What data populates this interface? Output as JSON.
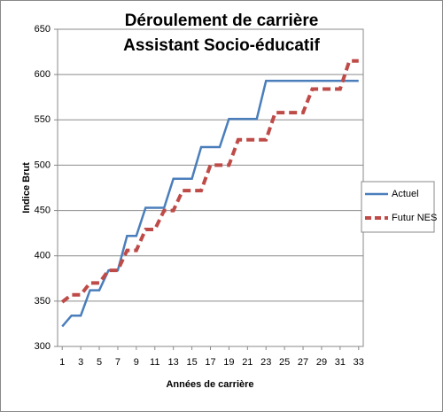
{
  "chart_data": {
    "type": "line",
    "title": "Déroulement de carrière",
    "subtitle": "Assistant Socio-éducatif",
    "x_label": "Années de carrière",
    "y_label": "Indice Brut",
    "x": [
      1,
      2,
      3,
      4,
      5,
      6,
      7,
      8,
      9,
      10,
      11,
      12,
      13,
      14,
      15,
      16,
      17,
      18,
      19,
      20,
      21,
      22,
      23,
      24,
      25,
      26,
      27,
      28,
      29,
      30,
      31,
      32,
      33
    ],
    "xlim": [
      0.5,
      33.5
    ],
    "xticks": [
      1,
      3,
      5,
      7,
      9,
      11,
      13,
      15,
      17,
      19,
      21,
      23,
      25,
      27,
      29,
      31,
      33
    ],
    "ylim": [
      300,
      650
    ],
    "yticks": [
      300,
      350,
      400,
      450,
      500,
      550,
      600,
      650
    ],
    "grid": true,
    "legend": "right",
    "series": [
      {
        "name": "Actuel",
        "color": "#4a7ebb",
        "dash": false,
        "values": [
          322,
          334,
          334,
          362,
          362,
          384,
          384,
          422,
          422,
          453,
          453,
          453,
          485,
          485,
          485,
          520,
          520,
          520,
          551,
          551,
          551,
          551,
          593,
          593,
          593,
          593,
          593,
          593,
          593,
          593,
          593,
          593,
          593
        ]
      },
      {
        "name": "Futur NES",
        "color": "#be4b48",
        "dash": true,
        "values": [
          349,
          357,
          357,
          370,
          370,
          384,
          384,
          406,
          406,
          429,
          429,
          450,
          450,
          472,
          472,
          472,
          500,
          500,
          500,
          528,
          528,
          528,
          528,
          558,
          558,
          558,
          558,
          584,
          584,
          584,
          584,
          615,
          615
        ]
      }
    ]
  }
}
